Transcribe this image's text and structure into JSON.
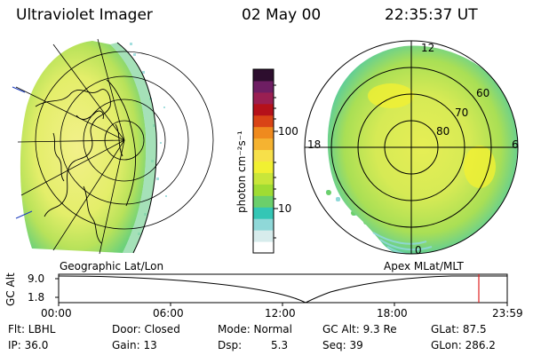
{
  "header": {
    "instrument": "Ultraviolet Imager",
    "date": "02 May 00",
    "time": "22:35:37 UT"
  },
  "left_panel": {
    "caption": "Geographic Lat/Lon"
  },
  "right_panel": {
    "caption": "Apex MLat/MLT",
    "mlt_labels": [
      "12",
      "18",
      "6",
      "0"
    ],
    "mlat_labels": [
      "60",
      "70",
      "80"
    ]
  },
  "colorbar": {
    "unit_label": "photon cm⁻²s⁻¹",
    "ticks": [
      "100",
      "10"
    ],
    "scale": "log",
    "colors": [
      "#ffffff",
      "#d7ecec",
      "#8fd8d8",
      "#34c6b5",
      "#6bcf6b",
      "#9fdc33",
      "#c9e63a",
      "#f1f032",
      "#f7e04a",
      "#f5b331",
      "#ef8a1e",
      "#d94416",
      "#b5111a",
      "#9a1f52",
      "#6e1e63",
      "#2d0e2e"
    ]
  },
  "altitude_strip": {
    "axis_label": "GC Alt",
    "y_ticks": [
      "9.0",
      "1.8"
    ],
    "x_ticks": [
      "00:00",
      "06:00",
      "12:00",
      "18:00",
      "23:59"
    ],
    "current_marker_color": "#e02020"
  },
  "footer": {
    "filter": "Flt: LBHL",
    "ip": "IP: 36.0",
    "door": "Door: Closed",
    "gain": "Gain: 13",
    "mode": "Mode: Normal",
    "dsp_label": "Dsp:",
    "dsp_value": "5.3",
    "gc_alt": "GC Alt: 9.3 Re",
    "seq": "Seq: 39",
    "glat": "GLat: 87.5",
    "glon": "GLon: 286.2"
  }
}
